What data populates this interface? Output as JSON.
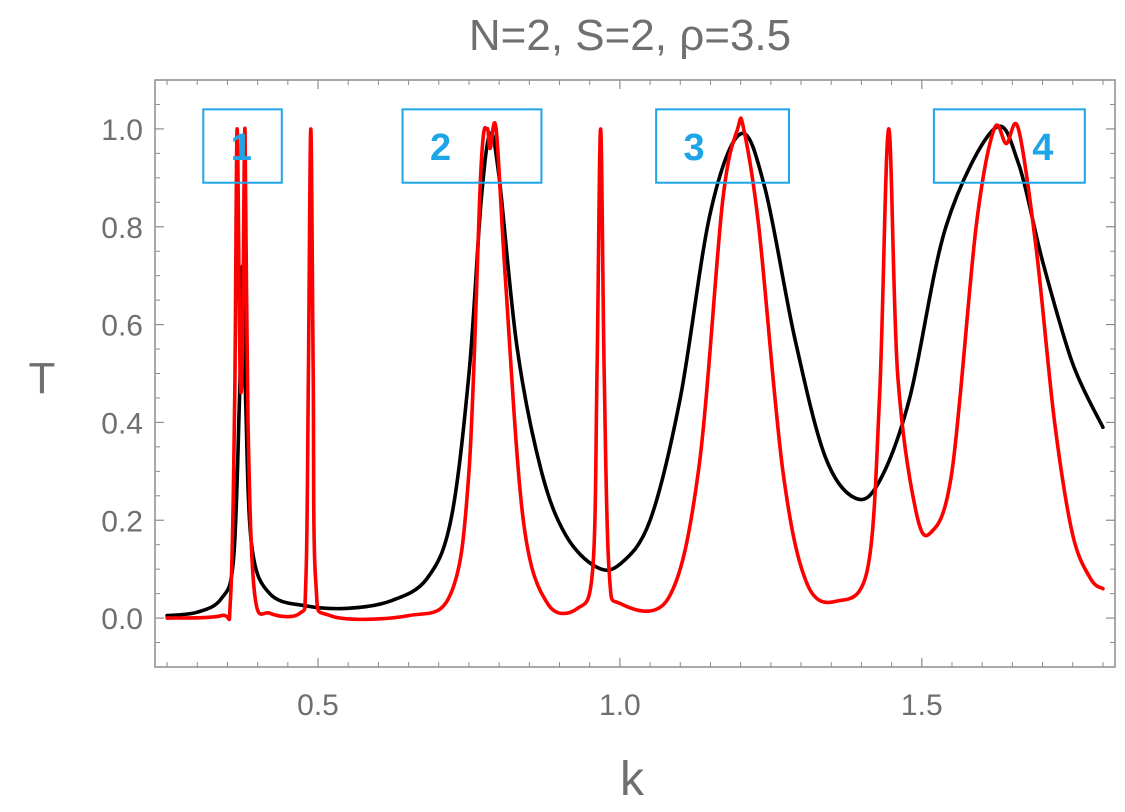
{
  "chart_data": {
    "type": "line",
    "title": "N=2, S=2, ρ=3.5",
    "xlabel": "k",
    "ylabel": "T",
    "xlim": [
      0.23,
      1.82
    ],
    "ylim": [
      -0.1,
      1.1
    ],
    "x_ticks": [
      0.5,
      1.0,
      1.5
    ],
    "x_tick_labels": [
      "0.5",
      "1.0",
      "1.5"
    ],
    "y_ticks": [
      0.0,
      0.2,
      0.4,
      0.6,
      0.8,
      1.0
    ],
    "y_tick_labels": [
      "0.0",
      "0.2",
      "0.4",
      "0.6",
      "0.8",
      "1.0"
    ],
    "grid": false,
    "series": [
      {
        "color": "#000000",
        "points": [
          [
            0.25,
            0.005
          ],
          [
            0.3,
            0.012
          ],
          [
            0.34,
            0.04
          ],
          [
            0.36,
            0.12
          ],
          [
            0.37,
            0.45
          ],
          [
            0.375,
            0.72
          ],
          [
            0.38,
            0.45
          ],
          [
            0.39,
            0.15
          ],
          [
            0.42,
            0.05
          ],
          [
            0.48,
            0.025
          ],
          [
            0.55,
            0.02
          ],
          [
            0.62,
            0.035
          ],
          [
            0.68,
            0.08
          ],
          [
            0.72,
            0.2
          ],
          [
            0.75,
            0.5
          ],
          [
            0.77,
            0.85
          ],
          [
            0.785,
            0.99
          ],
          [
            0.8,
            0.9
          ],
          [
            0.83,
            0.55
          ],
          [
            0.87,
            0.3
          ],
          [
            0.91,
            0.17
          ],
          [
            0.96,
            0.105
          ],
          [
            1.0,
            0.11
          ],
          [
            1.05,
            0.2
          ],
          [
            1.1,
            0.45
          ],
          [
            1.15,
            0.83
          ],
          [
            1.2,
            0.99
          ],
          [
            1.24,
            0.88
          ],
          [
            1.29,
            0.57
          ],
          [
            1.34,
            0.33
          ],
          [
            1.39,
            0.245
          ],
          [
            1.43,
            0.28
          ],
          [
            1.48,
            0.45
          ],
          [
            1.54,
            0.8
          ],
          [
            1.62,
            1.0
          ],
          [
            1.66,
            0.93
          ],
          [
            1.7,
            0.73
          ],
          [
            1.75,
            0.52
          ],
          [
            1.8,
            0.39
          ]
        ]
      },
      {
        "color": "#ff0000",
        "points": [
          [
            0.25,
            0.0
          ],
          [
            0.34,
            0.005
          ],
          [
            0.355,
            0.04
          ],
          [
            0.362,
            0.45
          ],
          [
            0.366,
            1.0
          ],
          [
            0.371,
            0.5
          ],
          [
            0.375,
            0.55
          ],
          [
            0.379,
            1.0
          ],
          [
            0.384,
            0.4
          ],
          [
            0.395,
            0.05
          ],
          [
            0.42,
            0.01
          ],
          [
            0.47,
            0.01
          ],
          [
            0.48,
            0.08
          ],
          [
            0.484,
            0.5
          ],
          [
            0.488,
            1.0
          ],
          [
            0.492,
            0.5
          ],
          [
            0.496,
            0.08
          ],
          [
            0.52,
            0.005
          ],
          [
            0.65,
            0.005
          ],
          [
            0.72,
            0.05
          ],
          [
            0.75,
            0.3
          ],
          [
            0.77,
            0.92
          ],
          [
            0.78,
            1.0
          ],
          [
            0.785,
            0.96
          ],
          [
            0.795,
            1.0
          ],
          [
            0.81,
            0.7
          ],
          [
            0.84,
            0.2
          ],
          [
            0.88,
            0.03
          ],
          [
            0.93,
            0.02
          ],
          [
            0.955,
            0.1
          ],
          [
            0.962,
            0.5
          ],
          [
            0.968,
            1.0
          ],
          [
            0.974,
            0.5
          ],
          [
            0.982,
            0.1
          ],
          [
            1.0,
            0.03
          ],
          [
            1.08,
            0.04
          ],
          [
            1.13,
            0.3
          ],
          [
            1.17,
            0.85
          ],
          [
            1.195,
            1.0
          ],
          [
            1.205,
            1.0
          ],
          [
            1.23,
            0.8
          ],
          [
            1.27,
            0.3
          ],
          [
            1.31,
            0.07
          ],
          [
            1.36,
            0.035
          ],
          [
            1.41,
            0.1
          ],
          [
            1.43,
            0.45
          ],
          [
            1.445,
            1.0
          ],
          [
            1.46,
            0.5
          ],
          [
            1.49,
            0.22
          ],
          [
            1.515,
            0.175
          ],
          [
            1.55,
            0.3
          ],
          [
            1.59,
            0.8
          ],
          [
            1.62,
            1.0
          ],
          [
            1.64,
            0.97
          ],
          [
            1.66,
            1.0
          ],
          [
            1.69,
            0.75
          ],
          [
            1.72,
            0.4
          ],
          [
            1.75,
            0.17
          ],
          [
            1.78,
            0.08
          ],
          [
            1.8,
            0.06
          ]
        ]
      }
    ],
    "annotations": [
      {
        "text": "1",
        "x_range": [
          0.31,
          0.44
        ],
        "y_range": [
          0.89,
          1.04
        ]
      },
      {
        "text": "2",
        "x_range": [
          0.64,
          0.87
        ],
        "y_range": [
          0.89,
          1.04
        ]
      },
      {
        "text": "3",
        "x_range": [
          1.06,
          1.28
        ],
        "y_range": [
          0.89,
          1.04
        ]
      },
      {
        "text": "4",
        "x_range": [
          1.52,
          1.77
        ],
        "y_range": [
          0.89,
          1.04
        ]
      }
    ],
    "annotation_color": "#1ea5e8"
  }
}
